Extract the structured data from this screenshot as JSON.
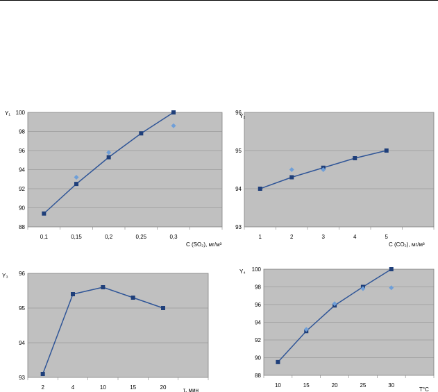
{
  "chart_data": [
    {
      "type": "line",
      "ylabel": "Y₁",
      "xlabel": "C (SO₂), мг/м³",
      "categories": [
        "0,1",
        "0,15",
        "0,2",
        "0,25",
        "0,3"
      ],
      "ylim": [
        88,
        100
      ],
      "yticks": [
        "88",
        "90",
        "92",
        "94",
        "96",
        "98",
        "100"
      ],
      "series": [
        {
          "values": [
            89.4,
            92.5,
            95.3,
            97.8,
            100.0
          ],
          "marker": "square",
          "line": true
        },
        {
          "values": [
            null,
            93.2,
            95.8,
            null,
            98.6
          ],
          "marker": "diamond",
          "line": false
        }
      ]
    },
    {
      "type": "line",
      "ylabel": "Y₂",
      "xlabel": "C (CO₂), мг/м³",
      "categories": [
        "1",
        "2",
        "3",
        "4",
        "5"
      ],
      "ylim": [
        93,
        96
      ],
      "yticks": [
        "93",
        "94",
        "95",
        "96"
      ],
      "series": [
        {
          "values": [
            94.0,
            94.3,
            94.55,
            94.8,
            95.0
          ],
          "marker": "square",
          "line": true
        },
        {
          "values": [
            null,
            94.5,
            94.5,
            null,
            null
          ],
          "marker": "diamond",
          "line": false
        }
      ]
    },
    {
      "type": "line",
      "ylabel": "Y₃",
      "xlabel": "τ, мин",
      "categories": [
        "2",
        "4",
        "10",
        "15",
        "20"
      ],
      "ylim": [
        93,
        96
      ],
      "yticks": [
        "93",
        "94",
        "95",
        "96"
      ],
      "series": [
        {
          "values": [
            93.1,
            95.4,
            95.6,
            95.3,
            95.0
          ],
          "marker": "square",
          "line": true
        }
      ]
    },
    {
      "type": "line",
      "ylabel": "Y₄",
      "xlabel": "T°C",
      "categories": [
        "10",
        "15",
        "20",
        "25",
        "30"
      ],
      "ylim": [
        88,
        100
      ],
      "yticks": [
        "88",
        "90",
        "92",
        "94",
        "96",
        "98",
        "100"
      ],
      "series": [
        {
          "values": [
            89.5,
            93.0,
            95.9,
            98.0,
            100.0
          ],
          "marker": "square",
          "line": true
        },
        {
          "values": [
            null,
            93.2,
            96.1,
            97.8,
            97.9
          ],
          "marker": "diamond",
          "line": false
        }
      ]
    }
  ],
  "colors": {
    "plot_area": "#c0c0c0",
    "series_line": "#2f5597",
    "square_marker": "#1f3f7a",
    "diamond_marker": "#6f9fd8",
    "gridline": "#888888"
  }
}
